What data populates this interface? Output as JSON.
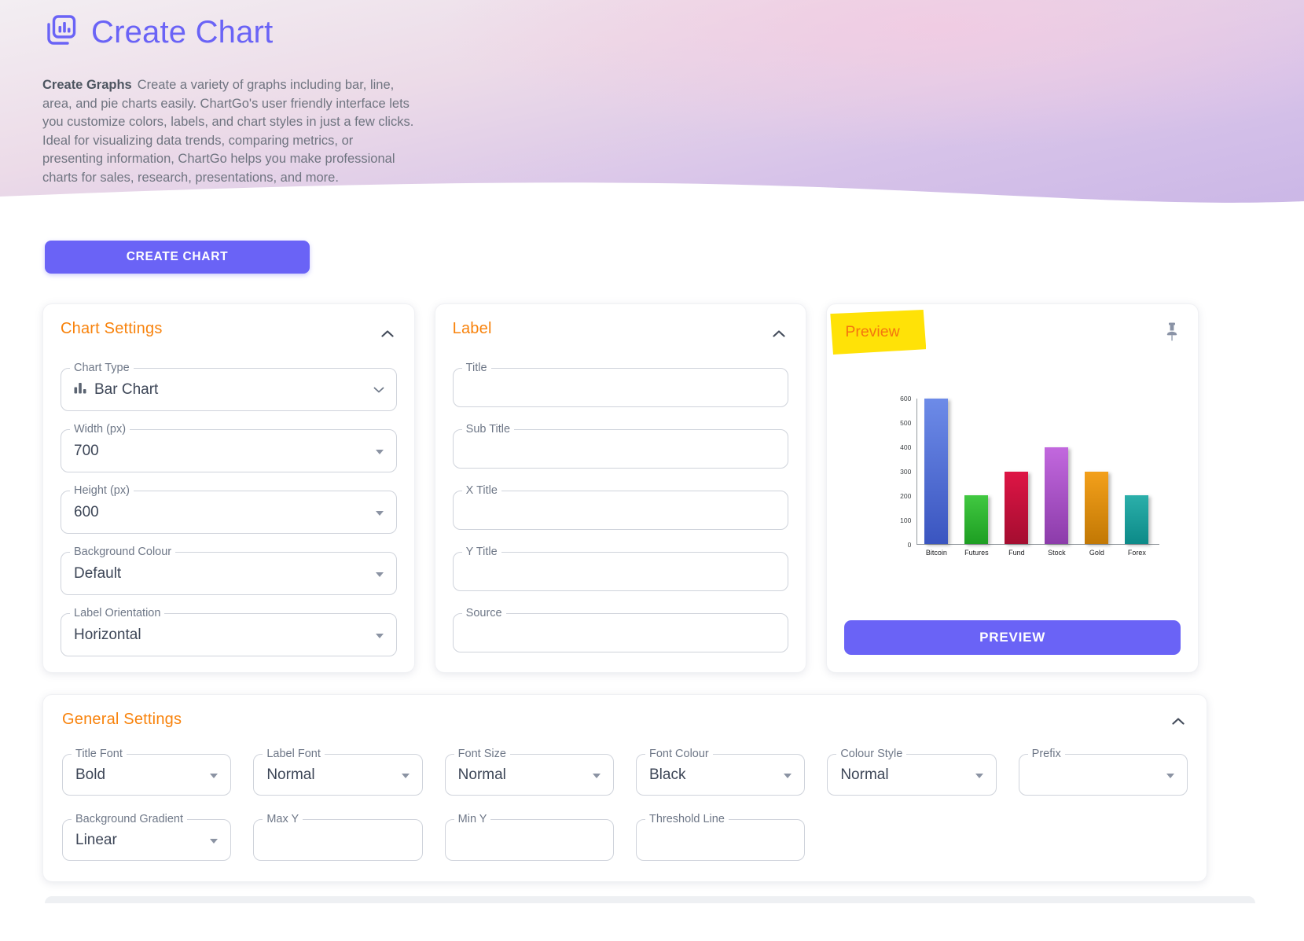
{
  "header": {
    "title": "Create Chart",
    "intro_bold": "Create Graphs",
    "intro": "Create a variety of graphs including bar, line, area, and pie charts easily. ChartGo's user friendly interface lets you customize colors, labels, and chart styles in just a few clicks. Ideal for visualizing data trends, comparing metrics, or presenting information, ChartGo helps you make professional charts for sales, research, presentations, and more."
  },
  "actions": {
    "create_chart": "CREATE CHART"
  },
  "colors": {
    "accent": "#6A63F6",
    "section_title": "#F8820B",
    "highlight": "#FFE207"
  },
  "chart_settings": {
    "title": "Chart Settings",
    "chart_type": {
      "label": "Chart Type",
      "value": "Bar Chart"
    },
    "width": {
      "label": "Width (px)",
      "value": "700"
    },
    "height": {
      "label": "Height (px)",
      "value": "600"
    },
    "background_colour": {
      "label": "Background Colour",
      "value": "Default"
    },
    "label_orientation": {
      "label": "Label Orientation",
      "value": "Horizontal"
    }
  },
  "label_section": {
    "title": "Label",
    "title_field": {
      "label": "Title",
      "value": ""
    },
    "sub_title_field": {
      "label": "Sub Title",
      "value": ""
    },
    "x_title_field": {
      "label": "X Title",
      "value": ""
    },
    "y_title_field": {
      "label": "Y Title",
      "value": ""
    },
    "source_field": {
      "label": "Source",
      "value": ""
    }
  },
  "preview_section": {
    "title": "Preview",
    "button": "PREVIEW"
  },
  "chart_data": {
    "type": "bar",
    "categories": [
      "Bitcoin",
      "Futures",
      "Fund",
      "Stock",
      "Gold",
      "Forex"
    ],
    "values": [
      600,
      200,
      300,
      400,
      300,
      200
    ],
    "bar_colors_top": [
      "#6D8BE8",
      "#41C841",
      "#DE1545",
      "#C268DE",
      "#F3A01B",
      "#2BAFAA"
    ],
    "bar_colors_bottom": [
      "#3A55C0",
      "#1D9E22",
      "#A40D30",
      "#8C3CAA",
      "#C27804",
      "#0C8A88"
    ],
    "title": "",
    "xlabel": "",
    "ylabel": "",
    "ylim": [
      0,
      600
    ],
    "yticks": [
      0,
      100,
      200,
      300,
      400,
      500,
      600
    ],
    "grid": false,
    "legend": false
  },
  "general_settings": {
    "title": "General Settings",
    "title_font": {
      "label": "Title Font",
      "value": "Bold"
    },
    "label_font": {
      "label": "Label Font",
      "value": "Normal"
    },
    "font_size": {
      "label": "Font Size",
      "value": "Normal"
    },
    "font_colour": {
      "label": "Font Colour",
      "value": "Black"
    },
    "colour_style": {
      "label": "Colour Style",
      "value": "Normal"
    },
    "prefix": {
      "label": "Prefix",
      "value": ""
    },
    "background_gradient": {
      "label": "Background Gradient",
      "value": "Linear"
    },
    "max_y": {
      "label": "Max Y",
      "value": ""
    },
    "min_y": {
      "label": "Min Y",
      "value": ""
    },
    "threshold_line": {
      "label": "Threshold Line",
      "value": ""
    }
  }
}
